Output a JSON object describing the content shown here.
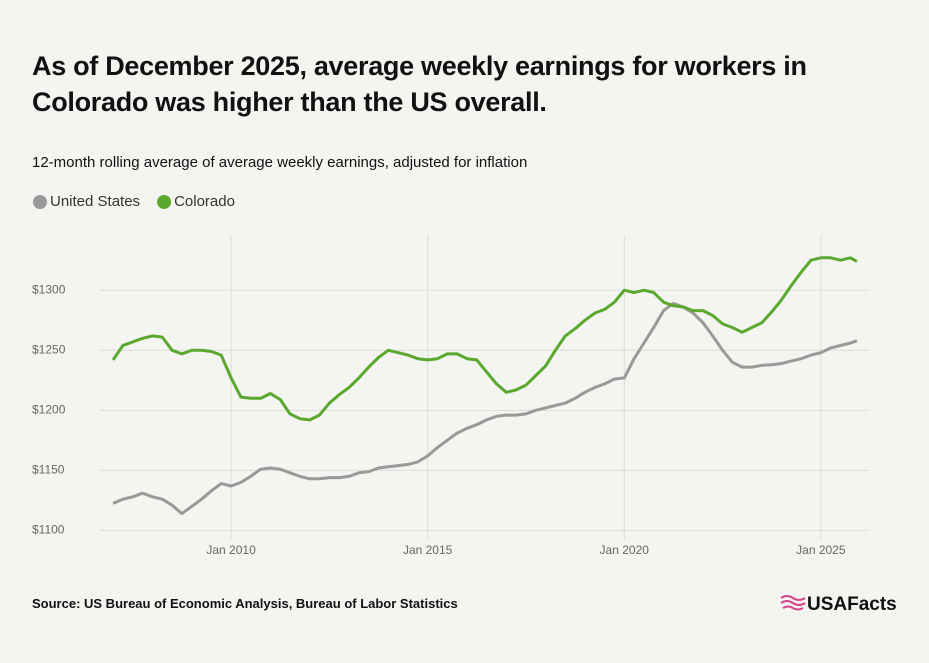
{
  "chart_data": {
    "type": "line",
    "title": "As of December 2025, average weekly earnings for workers in Colorado was higher than the US overall.",
    "subtitle": "12-month rolling average of average weekly earnings, adjusted for inflation",
    "source": "Source: US Bureau of Economic Analysis, Bureau of Labor Statistics",
    "logo": "USAFacts",
    "x": [
      "2007-01",
      "2007-04",
      "2007-07",
      "2007-10",
      "2008-01",
      "2008-04",
      "2008-07",
      "2008-10",
      "2009-01",
      "2009-04",
      "2009-07",
      "2009-10",
      "2010-01",
      "2010-04",
      "2010-07",
      "2010-10",
      "2011-01",
      "2011-04",
      "2011-07",
      "2011-10",
      "2012-01",
      "2012-04",
      "2012-07",
      "2012-10",
      "2013-01",
      "2013-04",
      "2013-07",
      "2013-10",
      "2014-01",
      "2014-04",
      "2014-07",
      "2014-10",
      "2015-01",
      "2015-04",
      "2015-07",
      "2015-10",
      "2016-01",
      "2016-04",
      "2016-07",
      "2016-10",
      "2017-01",
      "2017-04",
      "2017-07",
      "2017-10",
      "2018-01",
      "2018-04",
      "2018-07",
      "2018-10",
      "2019-01",
      "2019-04",
      "2019-07",
      "2019-10",
      "2020-01",
      "2020-04",
      "2020-07",
      "2020-10",
      "2021-01",
      "2021-04",
      "2021-07",
      "2021-10",
      "2022-01",
      "2022-04",
      "2022-07",
      "2022-10",
      "2023-01",
      "2023-04",
      "2023-07",
      "2023-10",
      "2024-01",
      "2024-04",
      "2024-07",
      "2024-10",
      "2025-01",
      "2025-04",
      "2025-07",
      "2025-10",
      "2025-12"
    ],
    "series": [
      {
        "name": "United States",
        "color": "#999999",
        "values": [
          1122.5,
          1126,
          1128,
          1131,
          1128,
          1126,
          1121,
          1114,
          1120,
          1126,
          1133,
          1139,
          1137,
          1140,
          1145,
          1151,
          1152,
          1151,
          1148,
          1145,
          1143,
          1143,
          1144,
          1144,
          1145,
          1148,
          1149,
          1152,
          1153,
          1154,
          1155,
          1157,
          1162,
          1169,
          1175,
          1181,
          1185,
          1188,
          1192,
          1195,
          1196,
          1196,
          1197,
          1200,
          1202,
          1204,
          1206,
          1210,
          1215,
          1219,
          1222,
          1226,
          1227,
          1243,
          1256,
          1269,
          1283,
          1289,
          1286,
          1281,
          1273,
          1262,
          1250,
          1240,
          1236,
          1236,
          1237.5,
          1238,
          1239,
          1241,
          1243,
          1246,
          1248,
          1252,
          1254,
          1256,
          1258
        ]
      },
      {
        "name": "Colorado",
        "color": "#5aa82e",
        "values": [
          1242,
          1254,
          1257,
          1260,
          1262,
          1261,
          1250,
          1247,
          1250,
          1250,
          1249,
          1246,
          1227,
          1211,
          1210,
          1210,
          1214,
          1209,
          1197,
          1193,
          1192,
          1196,
          1206,
          1213,
          1219,
          1227,
          1236,
          1244,
          1250,
          1248,
          1246,
          1243,
          1242,
          1243,
          1247,
          1247,
          1243,
          1242,
          1232,
          1222,
          1215,
          1217,
          1221,
          1229,
          1237,
          1250,
          1262,
          1268,
          1275,
          1281,
          1284,
          1290,
          1300,
          1298,
          1300,
          1298,
          1290,
          1287,
          1286,
          1283,
          1283,
          1279,
          1272,
          1269,
          1265,
          1269,
          1273,
          1282,
          1292,
          1304,
          1315,
          1325,
          1327,
          1327,
          1325,
          1327,
          1324
        ]
      }
    ],
    "xlim": [
      "2006-09",
      "2026-04"
    ],
    "xticks": [
      {
        "value": "2010-01",
        "label": "Jan 2010"
      },
      {
        "value": "2015-01",
        "label": "Jan 2015"
      },
      {
        "value": "2020-01",
        "label": "Jan 2020"
      },
      {
        "value": "2025-01",
        "label": "Jan 2025"
      }
    ],
    "ylim": [
      1092,
      1346
    ],
    "yticks": [
      {
        "value": 1100,
        "label": "$1100"
      },
      {
        "value": 1150,
        "label": "$1150"
      },
      {
        "value": 1200,
        "label": "$1200"
      },
      {
        "value": 1250,
        "label": "$1250"
      },
      {
        "value": 1300,
        "label": "$1300"
      }
    ],
    "grid": true
  }
}
